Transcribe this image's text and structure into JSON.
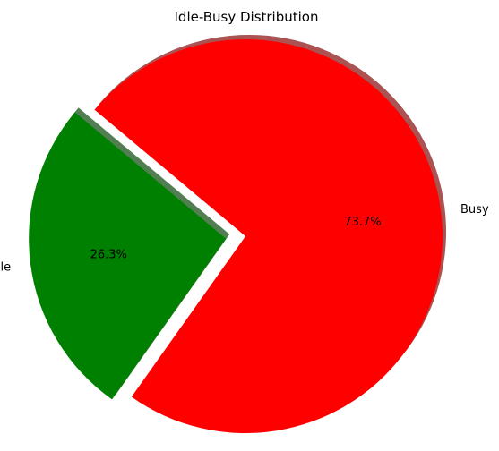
{
  "chart_data": {
    "type": "pie",
    "title": "Idle-Busy Distribution",
    "categories": [
      "Idle",
      "Busy"
    ],
    "values": [
      26.3,
      73.7
    ],
    "percent_labels": [
      "26.3%",
      "73.7%"
    ],
    "colors": [
      "#008000",
      "#ff0000"
    ],
    "exploded": [
      "Idle"
    ],
    "shadow": true,
    "legend": "none"
  }
}
